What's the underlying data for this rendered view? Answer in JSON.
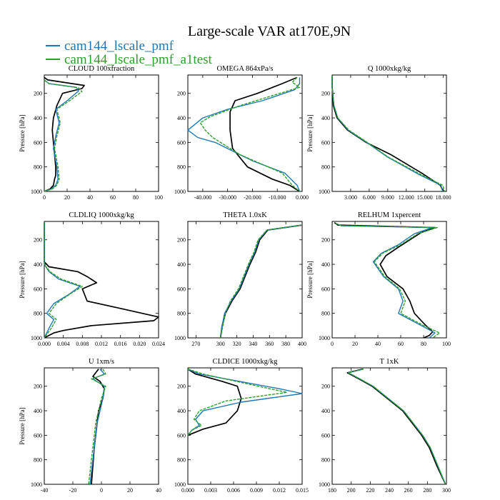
{
  "figure": {
    "title": "Large-scale VAR at170E,9N",
    "legend": [
      {
        "name": "cam144_lscale_pmf",
        "color": "#1f77b4"
      },
      {
        "name": "cam144_lscale_pmf_a1test",
        "color": "#2ca02c"
      }
    ],
    "control_color": "#000000"
  },
  "chart_data": [
    {
      "type": "line",
      "title": "CLOUD 100xfraction",
      "ylabel": "Pressure [hPa]",
      "xlim": [
        0,
        100
      ],
      "ylim": [
        1000,
        50
      ],
      "xticks": [
        0,
        20,
        40,
        60,
        80,
        100
      ],
      "xtick_labels": [
        "0",
        "20",
        "40",
        "60",
        "80",
        "100"
      ],
      "yticks": [
        200,
        400,
        600,
        800,
        1000
      ],
      "ytick_labels": [
        "200",
        "400",
        "600",
        "800",
        "1000"
      ],
      "series": [
        {
          "style": "control",
          "x": [
            0,
            3,
            35,
            33,
            16,
            11,
            8,
            7,
            8,
            9,
            10,
            10,
            9,
            8,
            5,
            0
          ],
          "y": [
            70,
            90,
            135,
            160,
            200,
            300,
            400,
            500,
            600,
            700,
            800,
            870,
            900,
            950,
            980,
            1000
          ]
        },
        {
          "style": "blue",
          "x": [
            0,
            4,
            28,
            30,
            20,
            10,
            13,
            10,
            8,
            9,
            11,
            12,
            10,
            6,
            0
          ],
          "y": [
            90,
            120,
            150,
            180,
            260,
            330,
            440,
            550,
            650,
            700,
            800,
            900,
            950,
            980,
            1000
          ]
        },
        {
          "style": "green",
          "x": [
            0,
            4,
            30,
            33,
            22,
            11,
            14,
            11,
            9,
            10,
            12,
            13,
            11,
            7,
            0
          ],
          "y": [
            90,
            120,
            155,
            185,
            260,
            330,
            440,
            550,
            650,
            700,
            800,
            900,
            950,
            980,
            1000
          ]
        }
      ]
    },
    {
      "type": "line",
      "title": "OMEGA 864xPa/s",
      "ylabel": "",
      "xlim": [
        -46,
        0
      ],
      "ylim": [
        1000,
        50
      ],
      "xticks": [
        -40,
        -30,
        -20,
        -10,
        0
      ],
      "xtick_labels": [
        "-40.000",
        "-30.000",
        "-20.000",
        "-10.000",
        "0.000"
      ],
      "yticks": [
        200,
        400,
        600,
        800,
        1000
      ],
      "ytick_labels": [
        "200",
        "400",
        "600",
        "800",
        "1000"
      ],
      "series": [
        {
          "style": "control",
          "x": [
            -2,
            -8,
            -18,
            -27,
            -29,
            -29,
            -28,
            -22,
            -12,
            -5,
            -1
          ],
          "y": [
            70,
            120,
            200,
            260,
            350,
            500,
            650,
            800,
            900,
            950,
            1000
          ]
        },
        {
          "style": "blue",
          "x": [
            -1,
            -1,
            -3,
            -16,
            -30,
            -40,
            -46,
            -42,
            -35,
            -20,
            -7,
            -2,
            -1
          ],
          "y": [
            70,
            120,
            170,
            260,
            330,
            400,
            500,
            560,
            600,
            750,
            850,
            950,
            1000
          ]
        },
        {
          "style": "green",
          "x": [
            -2,
            -4,
            -1,
            -9,
            -25,
            -37,
            -41,
            -39,
            -36,
            -25,
            -8,
            -4,
            -1
          ],
          "y": [
            70,
            110,
            150,
            200,
            300,
            390,
            440,
            500,
            560,
            700,
            850,
            950,
            1000
          ]
        }
      ]
    },
    {
      "type": "line",
      "title": "Q 1000xkg/kg",
      "ylabel": "Pressure [hPa]",
      "xlim": [
        0,
        18.5
      ],
      "ylim": [
        1000,
        50
      ],
      "xticks": [
        3,
        6,
        9,
        12,
        15,
        18
      ],
      "xtick_labels": [
        "3.000",
        "6.000",
        "9.000",
        "12.000",
        "15.000",
        "18.000"
      ],
      "yticks": [
        200,
        400,
        600,
        800,
        1000
      ],
      "ytick_labels": [
        "200",
        "400",
        "600",
        "800",
        "1000"
      ],
      "series": [
        {
          "style": "control",
          "x": [
            0,
            0,
            0.1,
            0.2,
            0.8,
            2.5,
            5.5,
            9.5,
            14.5,
            17.5,
            18
          ],
          "y": [
            60,
            150,
            200,
            300,
            400,
            500,
            600,
            700,
            850,
            950,
            1000
          ]
        },
        {
          "style": "blue",
          "x": [
            0,
            0,
            0.1,
            0.3,
            0.9,
            2.6,
            5.6,
            9.0,
            14.0,
            17.6,
            17.9
          ],
          "y": [
            60,
            150,
            200,
            300,
            400,
            500,
            600,
            720,
            860,
            950,
            1000
          ]
        },
        {
          "style": "green",
          "x": [
            0,
            0,
            0.1,
            0.3,
            0.9,
            2.7,
            5.7,
            9.1,
            14.3,
            17.9,
            18.2
          ],
          "y": [
            60,
            150,
            200,
            300,
            400,
            500,
            600,
            720,
            860,
            950,
            1000
          ]
        }
      ]
    },
    {
      "type": "line",
      "title": "CLDLIQ 1000xkg/kg",
      "ylabel": "Pressure [hPa]",
      "xlim": [
        0,
        0.024
      ],
      "ylim": [
        1000,
        50
      ],
      "xticks": [
        0,
        0.004,
        0.008,
        0.012,
        0.016,
        0.02,
        0.024
      ],
      "xtick_labels": [
        "0.000",
        "0.004",
        "0.008",
        "0.012",
        "0.016",
        "0.020",
        "0.024"
      ],
      "yticks": [
        200,
        400,
        600,
        800,
        1000
      ],
      "ytick_labels": [
        "200",
        "400",
        "600",
        "800",
        "1000"
      ],
      "series": [
        {
          "style": "control",
          "x": [
            0,
            0,
            0.001,
            0.007,
            0.009,
            0.011,
            0.008,
            0.009,
            0.016,
            0.024,
            0.023,
            0.01,
            0.004,
            0.002,
            0
          ],
          "y": [
            60,
            380,
            420,
            460,
            500,
            550,
            600,
            700,
            760,
            830,
            860,
            900,
            940,
            960,
            1000
          ]
        },
        {
          "style": "blue",
          "x": [
            0,
            0,
            0.001,
            0.003,
            0.0075,
            0.005,
            0.002,
            0.0005,
            0.002,
            0.001,
            0
          ],
          "y": [
            60,
            400,
            460,
            520,
            580,
            650,
            720,
            800,
            850,
            920,
            1000
          ]
        },
        {
          "style": "green",
          "x": [
            0,
            0,
            0.0012,
            0.0035,
            0.008,
            0.0055,
            0.0025,
            0.001,
            0.0025,
            0.0015,
            0
          ],
          "y": [
            60,
            400,
            460,
            520,
            580,
            640,
            720,
            800,
            850,
            920,
            1000
          ]
        }
      ]
    },
    {
      "type": "line",
      "title": "THETA 1.0xK",
      "ylabel": "",
      "xlim": [
        260,
        400
      ],
      "ylim": [
        1000,
        50
      ],
      "xticks": [
        270,
        300,
        320,
        340,
        360,
        380,
        400
      ],
      "xtick_labels": [
        "270",
        "300",
        "320",
        "340",
        "360",
        "380",
        "400"
      ],
      "yticks": [
        200,
        400,
        600,
        800,
        1000
      ],
      "ytick_labels": [
        "200",
        "400",
        "600",
        "800",
        "1000"
      ],
      "series": [
        {
          "style": "control",
          "x": [
            300,
            302,
            306,
            314,
            324,
            336,
            343,
            348,
            358,
            400
          ],
          "y": [
            1000,
            900,
            800,
            700,
            600,
            400,
            300,
            200,
            120,
            80
          ]
        },
        {
          "style": "blue",
          "x": [
            300,
            302,
            305,
            313,
            323,
            335,
            342,
            347,
            357,
            400
          ],
          "y": [
            1000,
            900,
            800,
            700,
            600,
            400,
            300,
            200,
            120,
            80
          ]
        },
        {
          "style": "green",
          "x": [
            300,
            303,
            306,
            312,
            322,
            334,
            341,
            346,
            357,
            400
          ],
          "y": [
            1000,
            900,
            800,
            700,
            600,
            400,
            300,
            200,
            120,
            80
          ]
        }
      ]
    },
    {
      "type": "line",
      "title": "RELHUM 1xpercent",
      "ylabel": "Pressure [hPa]",
      "xlim": [
        0,
        100
      ],
      "ylim": [
        1000,
        50
      ],
      "xticks": [
        0,
        20,
        40,
        60,
        80,
        100
      ],
      "xtick_labels": [
        "0",
        "20",
        "40",
        "60",
        "80",
        "100"
      ],
      "yticks": [
        200,
        400,
        600,
        800,
        1000
      ],
      "ytick_labels": [
        "200",
        "400",
        "600",
        "800",
        "1000"
      ],
      "series": [
        {
          "style": "control",
          "x": [
            2,
            5,
            90,
            78,
            58,
            47,
            42,
            48,
            62,
            68,
            72,
            82,
            88,
            85,
            80
          ],
          "y": [
            60,
            80,
            100,
            140,
            260,
            330,
            400,
            500,
            600,
            700,
            800,
            900,
            950,
            980,
            1000
          ]
        },
        {
          "style": "blue",
          "x": [
            3,
            8,
            88,
            72,
            58,
            43,
            36,
            45,
            58,
            62,
            58,
            78,
            90,
            85
          ],
          "y": [
            65,
            85,
            100,
            150,
            240,
            310,
            380,
            500,
            600,
            700,
            800,
            900,
            960,
            1000
          ]
        },
        {
          "style": "green",
          "x": [
            3,
            8,
            92,
            75,
            60,
            44,
            37,
            46,
            59,
            64,
            60,
            80,
            94,
            88
          ],
          "y": [
            65,
            85,
            100,
            150,
            240,
            310,
            380,
            500,
            600,
            700,
            800,
            900,
            960,
            1000
          ]
        }
      ]
    },
    {
      "type": "line",
      "title": "U 1xm/s",
      "ylabel": "Pressure [hPa]",
      "xlim": [
        -40,
        40
      ],
      "ylim": [
        1000,
        50
      ],
      "xticks": [
        -40,
        -20,
        0,
        20,
        40
      ],
      "xtick_labels": [
        "-40",
        "-20",
        "0",
        "20",
        "40"
      ],
      "yticks": [
        200,
        400,
        600,
        800,
        1000
      ],
      "ytick_labels": [
        "200",
        "400",
        "600",
        "800",
        "1000"
      ],
      "series": [
        {
          "style": "control",
          "x": [
            -2,
            -6,
            -1,
            2,
            1,
            -2,
            -3,
            -4,
            -5,
            -6,
            -7
          ],
          "y": [
            60,
            120,
            160,
            220,
            300,
            400,
            500,
            600,
            700,
            850,
            1000
          ]
        },
        {
          "style": "blue",
          "x": [
            -1,
            2,
            -6,
            2,
            1,
            -1,
            -3,
            -4,
            -5,
            -7,
            -8
          ],
          "y": [
            60,
            100,
            140,
            200,
            300,
            400,
            500,
            600,
            700,
            900,
            1000
          ]
        },
        {
          "style": "green",
          "x": [
            1,
            3,
            -7,
            3,
            0,
            -2,
            -4,
            -5,
            -6,
            -8,
            -9
          ],
          "y": [
            60,
            100,
            140,
            200,
            300,
            400,
            500,
            600,
            700,
            900,
            1000
          ]
        }
      ]
    },
    {
      "type": "line",
      "title": "CLDICE 1000xkg/kg",
      "ylabel": "",
      "xlim": [
        0,
        0.015
      ],
      "ylim": [
        1000,
        50
      ],
      "xticks": [
        0,
        0.003,
        0.006,
        0.009,
        0.012,
        0.015
      ],
      "xtick_labels": [
        "0.000",
        "0.003",
        "0.006",
        "0.009",
        "0.012",
        "0.015"
      ],
      "yticks": [
        200,
        400,
        600,
        800,
        1000
      ],
      "ytick_labels": [
        "200",
        "400",
        "600",
        "800",
        "1000"
      ],
      "series": [
        {
          "style": "control",
          "x": [
            0,
            0.001,
            0.0045,
            0.0065,
            0.007,
            0.0065,
            0.005,
            0.002,
            0
          ],
          "y": [
            60,
            100,
            160,
            200,
            300,
            400,
            500,
            550,
            600
          ]
        },
        {
          "style": "blue",
          "x": [
            0,
            0.0015,
            0.012,
            0.015,
            0.007,
            0.002,
            0.001,
            0.0015,
            0.0005,
            0
          ],
          "y": [
            60,
            100,
            220,
            260,
            330,
            400,
            470,
            520,
            560,
            600
          ]
        },
        {
          "style": "green",
          "x": [
            0,
            0.002,
            0.01,
            0.013,
            0.005,
            0.0015,
            0.0008,
            0.0018,
            0.0005,
            0
          ],
          "y": [
            60,
            100,
            210,
            250,
            320,
            400,
            470,
            520,
            560,
            600
          ]
        }
      ]
    },
    {
      "type": "line",
      "title": "T 1xK",
      "ylabel": "",
      "xlim": [
        180,
        300
      ],
      "ylim": [
        1000,
        50
      ],
      "xticks": [
        180,
        200,
        220,
        240,
        260,
        280,
        300
      ],
      "xtick_labels": [
        "180",
        "200",
        "220",
        "240",
        "260",
        "280",
        "300"
      ],
      "yticks": [
        200,
        400,
        600,
        800,
        1000
      ],
      "ytick_labels": [
        "200",
        "400",
        "600",
        "800",
        "1000"
      ],
      "series": [
        {
          "style": "control",
          "x": [
            212,
            196,
            208,
            222,
            238,
            254,
            264,
            274,
            282,
            290,
            299
          ],
          "y": [
            60,
            90,
            140,
            200,
            300,
            400,
            500,
            600,
            700,
            850,
            1000
          ]
        },
        {
          "style": "blue",
          "x": [
            213,
            197,
            209,
            223,
            239,
            255,
            265,
            275,
            283,
            291,
            299
          ],
          "y": [
            60,
            90,
            140,
            200,
            300,
            400,
            500,
            600,
            700,
            850,
            1000
          ]
        },
        {
          "style": "green",
          "x": [
            213,
            197,
            209,
            223,
            239,
            255,
            265,
            275,
            283,
            291,
            299
          ],
          "y": [
            60,
            90,
            140,
            200,
            300,
            400,
            500,
            600,
            700,
            850,
            1000
          ]
        }
      ]
    }
  ]
}
